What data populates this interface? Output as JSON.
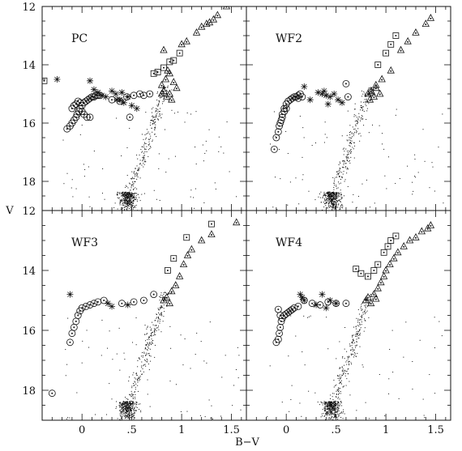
{
  "figure": {
    "xlabel": "B−V",
    "ylabel": "V",
    "xlim": [
      -0.4,
      1.65
    ],
    "ylim": [
      19.0,
      12.0
    ],
    "x_ticks": [
      "0",
      ".5",
      "1",
      "1.5"
    ],
    "x_tick_values": [
      0,
      0.5,
      1.0,
      1.5
    ],
    "y_ticks": [
      "12",
      "14",
      "16",
      "18"
    ],
    "y_tick_values": [
      12,
      14,
      16,
      18
    ],
    "colors": {
      "ink": "#111111",
      "background": "#ffffff"
    }
  },
  "chart_data": [
    {
      "type": "scatter",
      "panel": "PC",
      "xlabel": "",
      "ylabel": "V",
      "xlim": [
        -0.4,
        1.65
      ],
      "ylim": [
        19.0,
        12.0
      ],
      "series": [
        {
          "marker": "circle",
          "x": [
            -0.15,
            -0.12,
            -0.1,
            -0.08,
            -0.06,
            -0.05,
            -0.03,
            -0.02,
            0.0,
            0.02,
            0.04,
            0.06,
            0.08,
            0.1,
            0.12,
            0.14,
            0.16,
            -0.1,
            -0.08,
            -0.06,
            -0.04,
            -0.02,
            0.0,
            0.02,
            0.05,
            0.08,
            0.12,
            0.18,
            0.3,
            0.38,
            0.45,
            0.52,
            0.58,
            0.62,
            0.68,
            0.48
          ],
          "y": [
            16.2,
            16.1,
            16.0,
            15.9,
            15.8,
            15.7,
            15.6,
            15.5,
            15.4,
            15.3,
            15.25,
            15.2,
            15.15,
            15.1,
            15.1,
            15.05,
            15.05,
            15.5,
            15.4,
            15.35,
            15.25,
            15.3,
            15.6,
            15.7,
            15.8,
            15.8,
            15.1,
            15.05,
            15.2,
            15.25,
            15.1,
            15.05,
            15.0,
            15.05,
            15.0,
            15.8
          ]
        },
        {
          "marker": "star",
          "x": [
            -0.25,
            0.08,
            0.12,
            0.16,
            0.2,
            0.24,
            0.3,
            0.34,
            0.38,
            0.42,
            0.46,
            0.5,
            0.55,
            0.35,
            0.4
          ],
          "y": [
            14.5,
            14.55,
            14.85,
            14.95,
            15.05,
            15.1,
            14.9,
            15.0,
            15.2,
            15.3,
            15.1,
            15.4,
            15.5,
            15.2,
            14.95
          ]
        },
        {
          "marker": "square",
          "x": [
            -0.38,
            0.72,
            0.76,
            0.82,
            0.88,
            0.92,
            0.98
          ],
          "y": [
            14.55,
            14.3,
            14.25,
            14.1,
            13.9,
            13.85,
            13.6
          ]
        },
        {
          "marker": "triangle",
          "x": [
            0.8,
            0.82,
            0.85,
            0.88,
            0.9,
            0.95,
            0.8,
            0.84,
            0.88,
            0.92,
            0.86,
            0.82,
            1.0,
            1.05,
            1.15,
            1.2,
            1.25,
            1.28,
            1.32,
            1.36,
            1.45
          ],
          "y": [
            15.0,
            14.9,
            15.1,
            15.0,
            15.2,
            14.8,
            14.7,
            14.5,
            14.3,
            14.6,
            14.2,
            13.5,
            13.3,
            13.2,
            12.9,
            12.7,
            12.6,
            12.55,
            12.45,
            12.3,
            12.0
          ]
        }
      ]
    },
    {
      "type": "scatter",
      "panel": "WF2",
      "xlabel": "",
      "ylabel": "",
      "xlim": [
        -0.4,
        1.65
      ],
      "ylim": [
        19.0,
        12.0
      ],
      "series": [
        {
          "marker": "circle",
          "x": [
            -0.12,
            -0.1,
            -0.08,
            -0.07,
            -0.05,
            -0.04,
            -0.02,
            0.0,
            0.02,
            0.04,
            0.06,
            0.08,
            0.1,
            0.12,
            0.14,
            -0.06,
            -0.04,
            -0.02,
            0.0,
            0.6,
            0.62,
            0.12,
            0.16
          ],
          "y": [
            16.9,
            16.5,
            16.3,
            16.1,
            15.9,
            15.7,
            15.5,
            15.35,
            15.25,
            15.2,
            15.15,
            15.1,
            15.1,
            15.05,
            15.0,
            16.0,
            15.8,
            15.6,
            15.5,
            14.65,
            15.1,
            15.15,
            15.1
          ]
        },
        {
          "marker": "star",
          "x": [
            0.18,
            0.24,
            0.32,
            0.36,
            0.4,
            0.44,
            0.48,
            0.52,
            0.56,
            0.42,
            0.38
          ],
          "y": [
            14.75,
            15.2,
            14.95,
            15.0,
            15.05,
            15.1,
            15.0,
            15.2,
            15.3,
            15.35,
            14.9
          ]
        },
        {
          "marker": "square",
          "x": [
            0.92,
            1.0,
            1.05,
            1.1
          ],
          "y": [
            14.0,
            13.6,
            13.3,
            13.0
          ]
        },
        {
          "marker": "triangle",
          "x": [
            0.82,
            0.85,
            0.88,
            0.9,
            0.94,
            0.86,
            0.84,
            0.9,
            0.96,
            1.05,
            1.15,
            1.22,
            1.3,
            1.4,
            1.45
          ],
          "y": [
            15.0,
            14.9,
            15.1,
            14.8,
            15.0,
            14.95,
            15.2,
            14.7,
            14.5,
            14.2,
            13.5,
            13.2,
            12.9,
            12.6,
            12.4
          ]
        }
      ]
    },
    {
      "type": "scatter",
      "panel": "WF3",
      "xlabel": "B−V",
      "ylabel": "",
      "xlim": [
        -0.4,
        1.65
      ],
      "ylim": [
        19.0,
        12.0
      ],
      "series": [
        {
          "marker": "circle",
          "x": [
            -0.3,
            -0.12,
            -0.1,
            -0.08,
            -0.06,
            -0.04,
            -0.02,
            0.0,
            0.04,
            0.08,
            0.12,
            0.16,
            0.22,
            0.4,
            0.52,
            0.62,
            0.72
          ],
          "y": [
            18.1,
            16.4,
            16.1,
            15.9,
            15.7,
            15.5,
            15.35,
            15.25,
            15.2,
            15.15,
            15.1,
            15.05,
            15.0,
            15.1,
            15.05,
            15.0,
            14.8
          ]
        },
        {
          "marker": "star",
          "x": [
            -0.12,
            0.26,
            0.3,
            0.46
          ],
          "y": [
            14.8,
            15.1,
            15.2,
            15.15
          ]
        },
        {
          "marker": "square",
          "x": [
            0.86,
            0.92,
            1.05,
            1.3
          ],
          "y": [
            14.0,
            13.6,
            12.9,
            12.45
          ]
        },
        {
          "marker": "triangle",
          "x": [
            0.82,
            0.85,
            0.88,
            0.9,
            0.94,
            0.98,
            1.02,
            1.06,
            1.1,
            1.2,
            1.3,
            1.55
          ],
          "y": [
            15.0,
            14.9,
            15.1,
            14.7,
            14.5,
            14.2,
            13.8,
            13.5,
            13.3,
            13.0,
            12.8,
            12.4
          ]
        }
      ]
    },
    {
      "type": "scatter",
      "panel": "WF4",
      "xlabel": "B−V",
      "ylabel": "",
      "xlim": [
        -0.4,
        1.65
      ],
      "ylim": [
        19.0,
        12.0
      ],
      "series": [
        {
          "marker": "circle",
          "x": [
            -0.1,
            -0.08,
            -0.07,
            -0.06,
            -0.05,
            -0.04,
            -0.02,
            0.0,
            0.02,
            0.04,
            0.06,
            0.08,
            -0.08,
            -0.06,
            0.12,
            0.18,
            0.26,
            0.34,
            0.42,
            0.5,
            0.6
          ],
          "y": [
            16.4,
            16.3,
            16.1,
            15.9,
            15.7,
            15.6,
            15.5,
            15.45,
            15.4,
            15.35,
            15.3,
            15.25,
            15.3,
            15.5,
            15.2,
            15.0,
            15.1,
            15.15,
            15.05,
            15.1,
            15.1
          ]
        },
        {
          "marker": "star",
          "x": [
            0.14,
            0.16,
            0.18,
            0.3,
            0.36,
            0.4,
            0.44,
            0.5
          ],
          "y": [
            14.8,
            14.9,
            15.0,
            15.15,
            14.8,
            15.25,
            15.0,
            15.1
          ]
        },
        {
          "marker": "square",
          "x": [
            0.7,
            0.75,
            0.82,
            0.88,
            0.92,
            0.98,
            1.02,
            1.05,
            1.1
          ],
          "y": [
            13.95,
            14.1,
            14.2,
            14.0,
            13.8,
            13.4,
            13.2,
            13.0,
            12.85
          ]
        },
        {
          "marker": "triangle",
          "x": [
            0.8,
            0.82,
            0.85,
            0.88,
            0.9,
            0.92,
            0.95,
            0.98,
            1.0,
            1.04,
            1.08,
            1.12,
            1.18,
            1.24,
            1.3,
            1.36,
            1.42,
            1.45
          ],
          "y": [
            15.0,
            14.9,
            15.1,
            14.8,
            14.95,
            14.6,
            14.4,
            14.2,
            14.0,
            13.8,
            13.6,
            13.4,
            13.2,
            13.0,
            12.9,
            12.7,
            12.6,
            12.5
          ]
        }
      ]
    }
  ]
}
